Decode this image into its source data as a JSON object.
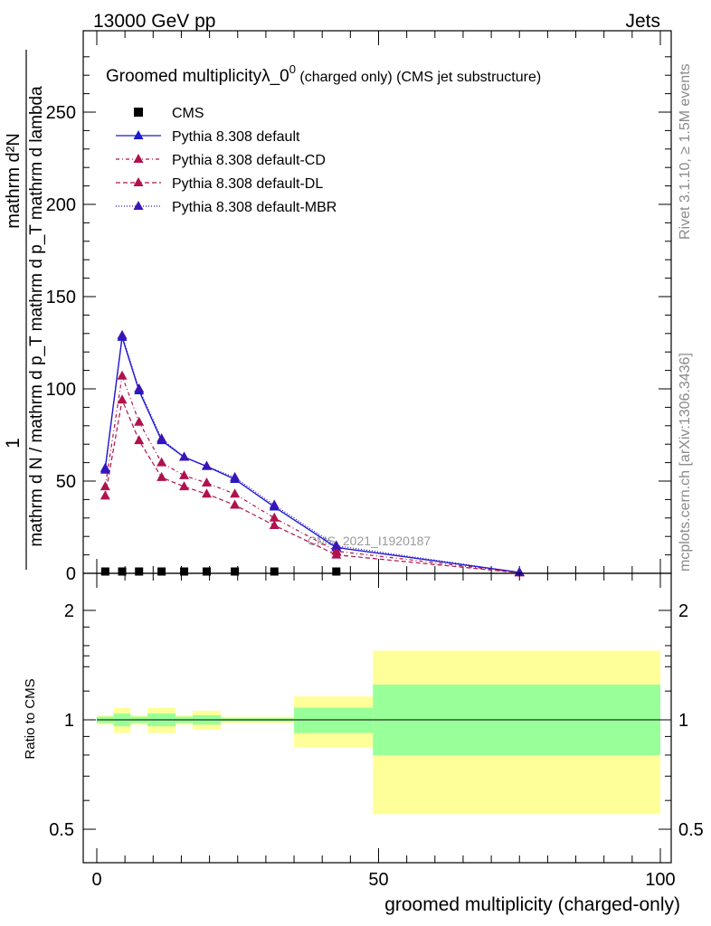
{
  "header": {
    "left": "13000 GeV pp",
    "right": "Jets"
  },
  "side_labels": {
    "rivet": "Rivet 3.1.10, ≥ 1.5M events",
    "mcplots": "mcplots.cern.ch [arXiv:1306.3436]"
  },
  "colors": {
    "cms": "#000000",
    "default": "#1a1ad0",
    "cd": "#b0124e",
    "dl": "#b0124e",
    "mbr": "#3a14b8",
    "band_inner": "#99ff99",
    "band_outer": "#ffff99"
  },
  "chart_data": [
    {
      "type": "line",
      "title_main": "Groomed multiplicityλ_0",
      "title_sup": "0",
      "title_suffix": " (charged only) (CMS jet substructure)",
      "watermark": "CMS_2021_I1920187",
      "ylabel_numerator": "1",
      "ylabel_numerator_right": "mathrm d²N",
      "ylabel_denominator": "mathrm d N / mathrm d p_T mathrm d p_T mathrm d lambda",
      "ylabel_line1": "mathrm d",
      "ylabel_line2": "N",
      "ylabel_full_top": "mathrm d²N",
      "ylabel_full_bottom": "mathrm d N / mathrm d p_T mathrm d p_T mathrm d lambda",
      "xlim": [
        -4,
        100
      ],
      "ylim": [
        0,
        290
      ],
      "yticks": [
        0,
        50,
        100,
        150,
        200,
        250
      ],
      "yticklabels": [
        "0",
        "50",
        "100",
        "150",
        "200",
        "250"
      ],
      "legend_position": "top-left",
      "series": [
        {
          "name": "CMS",
          "marker": "square",
          "x": [
            1.5,
            4.5,
            7.5,
            11.5,
            15.5,
            19.5,
            24.5,
            31.5,
            42.5
          ],
          "y": [
            0.5,
            0.5,
            0.5,
            0.5,
            0.5,
            0.5,
            0.5,
            0.5,
            0.5
          ]
        },
        {
          "name": "Pythia 8.308 default",
          "marker": "triangle",
          "dash": "",
          "x": [
            1.5,
            4.5,
            7.5,
            11.5,
            15.5,
            19.5,
            24.5,
            31.5,
            42.5,
            75
          ],
          "y": [
            57,
            128,
            99,
            72,
            63,
            58,
            51,
            36,
            14,
            0.5
          ]
        },
        {
          "name": "Pythia 8.308 default-CD",
          "marker": "triangle",
          "dash": "4,3,1,3",
          "x": [
            1.5,
            4.5,
            7.5,
            11.5,
            15.5,
            19.5,
            24.5,
            31.5,
            42.5,
            75
          ],
          "y": [
            47,
            107,
            82,
            60,
            53,
            49,
            43,
            30,
            12,
            0.4
          ]
        },
        {
          "name": "Pythia 8.308 default-DL",
          "marker": "triangle",
          "dash": "5,3",
          "x": [
            1.5,
            4.5,
            7.5,
            11.5,
            15.5,
            19.5,
            24.5,
            31.5,
            42.5,
            75
          ],
          "y": [
            42,
            94,
            72,
            52,
            47,
            43,
            37,
            26,
            10,
            0.3
          ]
        },
        {
          "name": "Pythia 8.308 default-MBR",
          "marker": "triangle",
          "dash": "1,2",
          "x": [
            1.5,
            4.5,
            7.5,
            11.5,
            15.5,
            19.5,
            24.5,
            31.5,
            42.5,
            75
          ],
          "y": [
            56,
            129,
            100,
            73,
            63,
            58,
            52,
            37,
            15,
            0.5
          ]
        }
      ]
    },
    {
      "type": "area",
      "ylabel": "Ratio to CMS",
      "xlabel": "groomed multiplicity (charged-only)",
      "xlim": [
        -4,
        100
      ],
      "ylim": [
        0.3,
        2.3
      ],
      "yticks": [
        0.5,
        1,
        2
      ],
      "yticklabels": [
        "0.5",
        "1",
        "2"
      ],
      "xticks": [
        0,
        50,
        100
      ],
      "xticklabels": [
        "0",
        "50",
        "100"
      ],
      "bands": [
        {
          "x0": 0,
          "x1": 3,
          "inner": [
            0.98,
            1.02
          ],
          "outer": [
            0.97,
            1.03
          ]
        },
        {
          "x0": 3,
          "x1": 6,
          "inner": [
            0.96,
            1.04
          ],
          "outer": [
            0.92,
            1.08
          ]
        },
        {
          "x0": 6,
          "x1": 9,
          "inner": [
            0.98,
            1.02
          ],
          "outer": [
            0.97,
            1.03
          ]
        },
        {
          "x0": 9,
          "x1": 14,
          "inner": [
            0.96,
            1.04
          ],
          "outer": [
            0.92,
            1.08
          ]
        },
        {
          "x0": 14,
          "x1": 17,
          "inner": [
            0.98,
            1.02
          ],
          "outer": [
            0.97,
            1.03
          ]
        },
        {
          "x0": 17,
          "x1": 22,
          "inner": [
            0.97,
            1.03
          ],
          "outer": [
            0.94,
            1.06
          ]
        },
        {
          "x0": 22,
          "x1": 35,
          "inner": [
            0.99,
            1.01
          ],
          "outer": [
            0.98,
            1.02
          ]
        },
        {
          "x0": 35,
          "x1": 49,
          "inner": [
            0.92,
            1.08
          ],
          "outer": [
            0.84,
            1.16
          ]
        },
        {
          "x0": 49,
          "x1": 100,
          "inner": [
            0.8,
            1.25
          ],
          "outer": [
            0.55,
            1.55
          ]
        }
      ]
    }
  ]
}
